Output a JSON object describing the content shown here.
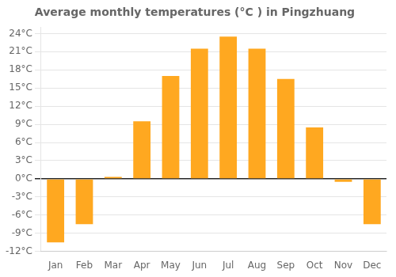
{
  "chart_data": {
    "type": "bar",
    "title": "Average monthly temperatures (°C ) in Pingzhuang",
    "categories": [
      "Jan",
      "Feb",
      "Mar",
      "Apr",
      "May",
      "Jun",
      "Jul",
      "Aug",
      "Sep",
      "Oct",
      "Nov",
      "Dec"
    ],
    "values": [
      -10.5,
      -7.5,
      0.3,
      9.5,
      17.0,
      21.5,
      23.5,
      21.5,
      16.5,
      8.5,
      -0.5,
      -7.5
    ],
    "color": "#FFA820",
    "ylim": [
      -12,
      25
    ],
    "yticks": [
      {
        "value": -12,
        "label": "-12°C"
      },
      {
        "value": -9,
        "label": "-9°C"
      },
      {
        "value": -6,
        "label": "-6°C"
      },
      {
        "value": -3,
        "label": "-3°C"
      },
      {
        "value": 0,
        "label": "0°C"
      },
      {
        "value": 3,
        "label": "3°C"
      },
      {
        "value": 6,
        "label": "6°C"
      },
      {
        "value": 9,
        "label": "9°C"
      },
      {
        "value": 12,
        "label": "12°C"
      },
      {
        "value": 15,
        "label": "15°C"
      },
      {
        "value": 18,
        "label": "18°C"
      },
      {
        "value": 21,
        "label": "21°C"
      },
      {
        "value": 24,
        "label": "24°C"
      }
    ],
    "grid": true
  }
}
